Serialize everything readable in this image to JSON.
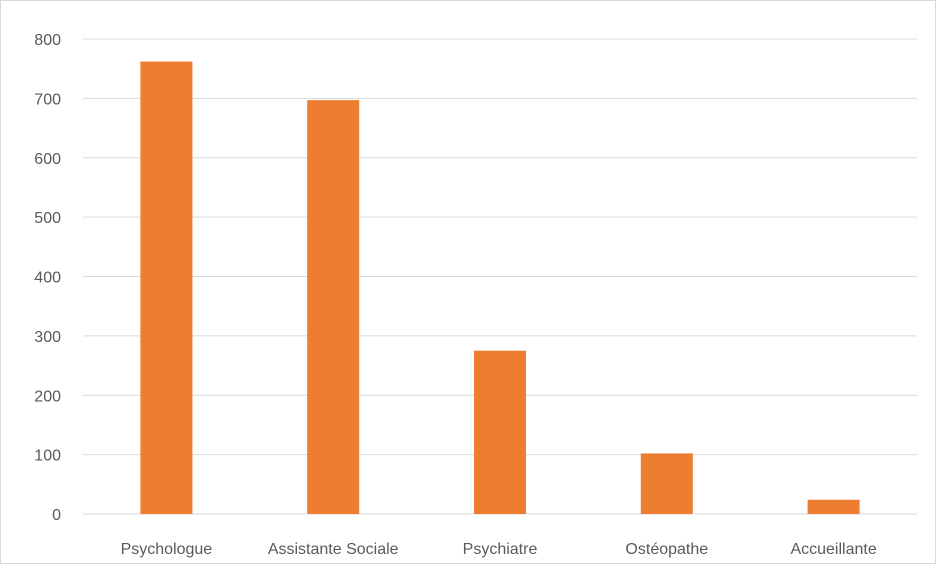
{
  "chart_data": {
    "type": "bar",
    "categories": [
      "Psychologue",
      "Assistante Sociale",
      "Psychiatre",
      "Ostéopathe",
      "Accueillante"
    ],
    "series": [
      {
        "values": [
          762,
          697,
          275,
          102,
          24
        ],
        "color": "#ED7D31"
      }
    ],
    "ylim": [
      0,
      800
    ],
    "yticks": [
      0,
      100,
      200,
      300,
      400,
      500,
      600,
      700,
      800
    ],
    "grid": true,
    "legend": "none",
    "title": "",
    "xlabel": "",
    "ylabel": ""
  }
}
